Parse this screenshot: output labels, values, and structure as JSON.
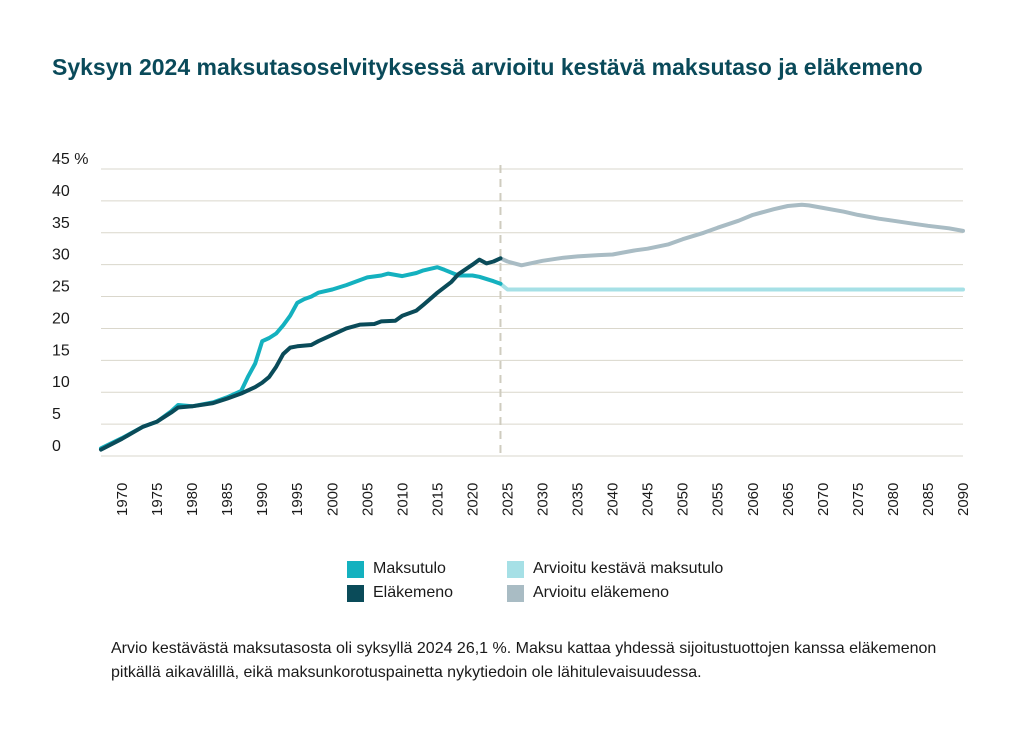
{
  "title": "Syksyn 2024 maksutasoselvityksessä arvioitu kestävä maksutaso ja eläkemeno",
  "note": "Arvio kestävästä maksutasosta oli syksyllä 2024 26,1 %. Maksu kattaa yhdessä sijoitustuottojen kanssa eläkemenon pitkällä aikavälillä, eikä maksunkorotuspainetta nykytiedoin ole lähitulevaisuudessa.",
  "chart_data": {
    "type": "line",
    "title": "Syksyn 2024 maksutasoselvityksessä arvioitu kestävä maksutaso ja eläkemeno",
    "ylim": [
      0,
      45
    ],
    "xlim": [
      1967,
      2090
    ],
    "y_ticks": [
      "0",
      "5",
      "10",
      "15",
      "20",
      "25",
      "30",
      "35",
      "40",
      "45 %"
    ],
    "y_tick_values": [
      0,
      5,
      10,
      15,
      20,
      25,
      30,
      35,
      40,
      45
    ],
    "x_ticks": [
      1970,
      1975,
      1980,
      1985,
      1990,
      1995,
      2000,
      2005,
      2010,
      2015,
      2020,
      2025,
      2030,
      2035,
      2040,
      2045,
      2050,
      2055,
      2060,
      2065,
      2070,
      2075,
      2080,
      2085,
      2090
    ],
    "projection_start": 2024,
    "grid": true,
    "legend_position": "bottom",
    "series": [
      {
        "name": "Maksutulo",
        "color": "#14b1bf",
        "x": [
          1967,
          1970,
          1973,
          1975,
          1977,
          1978,
          1980,
          1983,
          1985,
          1987,
          1988,
          1989,
          1990,
          1991,
          1992,
          1993,
          1994,
          1995,
          1996,
          1997,
          1998,
          2000,
          2002,
          2005,
          2007,
          2008,
          2010,
          2012,
          2013,
          2015,
          2016,
          2018,
          2020,
          2021,
          2023,
          2024
        ],
        "y": [
          1.2,
          2.8,
          4.6,
          5.4,
          7,
          8,
          7.8,
          8.4,
          9.2,
          10.2,
          12.5,
          14.5,
          18,
          18.5,
          19.2,
          20.5,
          22,
          24,
          24.6,
          25,
          25.6,
          26.1,
          26.8,
          28,
          28.3,
          28.6,
          28.2,
          28.7,
          29.1,
          29.6,
          29.2,
          28.3,
          28.3,
          28.1,
          27.4,
          27
        ]
      },
      {
        "name": "Eläkemeno",
        "color": "#0a4b59",
        "x": [
          1967,
          1970,
          1973,
          1975,
          1977,
          1978,
          1980,
          1983,
          1985,
          1987,
          1989,
          1990,
          1991,
          1992,
          1993,
          1994,
          1995,
          1997,
          1998,
          2000,
          2002,
          2004,
          2006,
          2007,
          2009,
          2010,
          2012,
          2013,
          2015,
          2017,
          2018,
          2020,
          2021,
          2022,
          2023,
          2024
        ],
        "y": [
          1,
          2.7,
          4.6,
          5.4,
          6.8,
          7.6,
          7.8,
          8.3,
          9,
          9.8,
          10.8,
          11.5,
          12.4,
          14,
          16,
          17,
          17.2,
          17.4,
          18,
          19,
          20,
          20.6,
          20.7,
          21.1,
          21.2,
          22,
          22.8,
          23.7,
          25.6,
          27.3,
          28.5,
          30,
          30.8,
          30.2,
          30.5,
          31
        ]
      },
      {
        "name": "Arvioitu kestävä maksutulo",
        "color": "#a6e0e6",
        "x": [
          2024,
          2025,
          2026,
          2090
        ],
        "y": [
          27,
          26.1,
          26.1,
          26.1
        ]
      },
      {
        "name": "Arvioitu eläkemeno",
        "color": "#a9bcc4",
        "x": [
          2024,
          2025,
          2027,
          2030,
          2033,
          2035,
          2038,
          2040,
          2043,
          2045,
          2048,
          2050,
          2053,
          2055,
          2058,
          2060,
          2063,
          2065,
          2067,
          2068,
          2070,
          2073,
          2075,
          2078,
          2080,
          2083,
          2085,
          2088,
          2090
        ],
        "y": [
          31,
          30.5,
          29.9,
          30.6,
          31.1,
          31.3,
          31.5,
          31.6,
          32.2,
          32.5,
          33.2,
          34,
          35,
          35.8,
          36.9,
          37.8,
          38.7,
          39.2,
          39.4,
          39.3,
          38.9,
          38.3,
          37.8,
          37.2,
          36.9,
          36.4,
          36.1,
          35.7,
          35.3
        ]
      }
    ]
  },
  "legend": {
    "maksutulo": "Maksutulo",
    "elakemeno": "Eläkemeno",
    "arvioitu_maksutulo": "Arvioitu kestävä maksutulo",
    "arvioitu_elakemeno": "Arvioitu eläkemeno"
  }
}
